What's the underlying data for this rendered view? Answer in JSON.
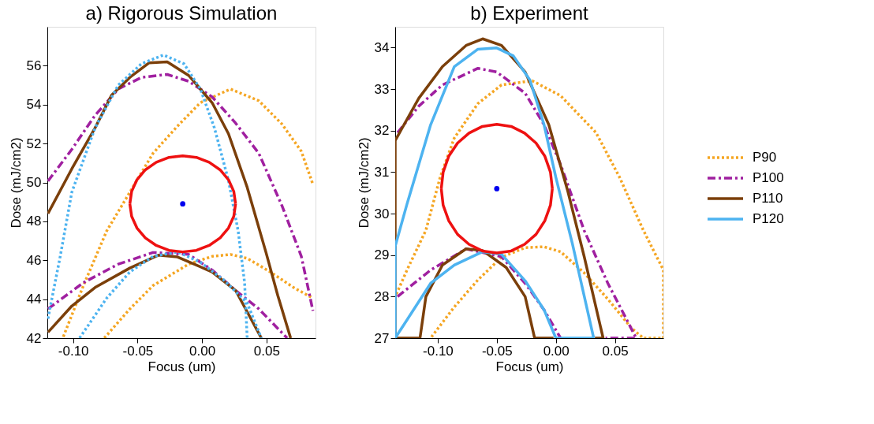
{
  "chart_data": [
    {
      "type": "line",
      "title": "a) Rigorous Simulation",
      "xlabel": "Focus (um)",
      "ylabel": "Dose (mJ/cm2)",
      "xlim": [
        -0.12,
        0.088
      ],
      "ylim": [
        42,
        58
      ],
      "xticks": [
        {
          "value": -0.1,
          "label": "-0.10"
        },
        {
          "value": -0.05,
          "label": "-0.05"
        },
        {
          "value": 0,
          "label": "0.00"
        },
        {
          "value": 0.05,
          "label": "0.05"
        }
      ],
      "yticks": [
        42,
        44,
        46,
        48,
        50,
        52,
        54,
        56
      ],
      "series": [
        {
          "color": "#f5a623",
          "line_style": "dotted",
          "x": [
            -0.1076,
            -0.092,
            -0.074,
            -0.056,
            -0.038,
            -0.019,
            -0.0013,
            0.022,
            0.044,
            0.062,
            0.077,
            0.086,
            null,
            -0.0758,
            -0.056,
            -0.038,
            -0.0104,
            0.0078,
            0.022,
            0.035,
            0.053,
            0.071,
            0.086
          ],
          "values": [
            42.07,
            44.7,
            47.5,
            49.5,
            51.5,
            52.9,
            54.1,
            54.8,
            54.2,
            53.0,
            51.6,
            49.9,
            null,
            42,
            43.5,
            44.7,
            45.8,
            46.2,
            46.3,
            46.1,
            45.4,
            44.6,
            44.05
          ]
        },
        {
          "color": "#a020a0",
          "line_style": "dashed",
          "x": [
            -0.1195,
            -0.101,
            -0.083,
            -0.065,
            -0.047,
            -0.027,
            -0.0104,
            0.0078,
            0.026,
            0.044,
            0.062,
            0.077,
            0.086,
            null,
            -0.1195,
            -0.092,
            -0.065,
            -0.038,
            -0.0104,
            0.0078,
            0.026,
            0.044,
            0.066
          ],
          "values": [
            50.07,
            51.7,
            53.45,
            54.8,
            55.4,
            55.55,
            55.2,
            54.4,
            53.05,
            51.5,
            48.8,
            46.2,
            43.4,
            null,
            43.5,
            44.85,
            45.8,
            46.4,
            46.3,
            45.5,
            44.45,
            43.5,
            42
          ]
        },
        {
          "color": "#7b3f0a",
          "line_style": "solid",
          "x": [
            -0.1195,
            -0.101,
            -0.083,
            -0.07,
            -0.056,
            -0.041,
            -0.027,
            -0.0104,
            0.0078,
            0.0205,
            0.035,
            0.0496,
            0.0587,
            0.0687,
            null,
            -0.1195,
            -0.101,
            -0.083,
            -0.056,
            -0.034,
            -0.019,
            0.0078,
            0.026,
            0.046
          ],
          "values": [
            48.4,
            50.7,
            52.8,
            54.5,
            55.4,
            56.15,
            56.2,
            55.5,
            54.1,
            52.5,
            49.75,
            46.4,
            44.2,
            42,
            null,
            42.3,
            43.65,
            44.6,
            45.6,
            46.26,
            46.17,
            45.4,
            44.45,
            42
          ]
        },
        {
          "color": "#4db3f0",
          "line_style": "dotted",
          "x": [
            -0.1195,
            -0.11,
            -0.101,
            -0.083,
            -0.065,
            -0.047,
            -0.03,
            -0.014,
            -0.0013,
            0.0096,
            0.0205,
            0.028,
            0.033,
            0.035,
            null,
            -0.095,
            -0.074,
            -0.056,
            -0.038,
            -0.019,
            -0.0013,
            0.017,
            0.035,
            0.046
          ],
          "values": [
            43.0,
            46.2,
            49.5,
            52.8,
            55.0,
            56.1,
            56.55,
            56.1,
            54.8,
            52.8,
            50.1,
            47.5,
            44.85,
            42,
            null,
            42,
            44.05,
            45.4,
            46.2,
            46.43,
            45.9,
            44.98,
            43.8,
            42
          ]
        },
        {
          "type": "line",
          "color": "#ee1111",
          "line_style": "solid",
          "x": [
            -0.056,
            -0.0546,
            -0.0505,
            -0.044,
            -0.0355,
            -0.0256,
            -0.015,
            -0.0044,
            0.0055,
            0.014,
            0.0205,
            0.0246,
            0.026,
            null,
            -0.056,
            -0.0546,
            -0.0505,
            -0.044,
            -0.0355,
            -0.0256,
            -0.015,
            -0.0044,
            0.0055,
            0.014,
            0.0205,
            0.0246,
            0.026
          ],
          "values": [
            48.9,
            49.54,
            50.14,
            50.65,
            51.04,
            51.29,
            51.37,
            51.29,
            51.04,
            50.65,
            50.14,
            49.54,
            48.9,
            null,
            48.9,
            48.26,
            47.66,
            47.15,
            46.76,
            46.51,
            46.43,
            46.51,
            46.76,
            47.15,
            47.66,
            48.26,
            48.9
          ]
        },
        {
          "type": "scatter",
          "color": "#0000ee",
          "marker": "circle",
          "x": [
            -0.015
          ],
          "values": [
            48.9
          ]
        }
      ]
    },
    {
      "type": "line",
      "title": "b) Experiment",
      "xlabel": "Focus (um)",
      "ylabel": "Dose (mJ/cm2)",
      "xlim": [
        -0.136,
        0.091
      ],
      "ylim": [
        27,
        34.5
      ],
      "xticks": [
        {
          "value": -0.1,
          "label": "-0.10"
        },
        {
          "value": -0.05,
          "label": "-0.05"
        },
        {
          "value": 0,
          "label": "0.00"
        },
        {
          "value": 0.05,
          "label": "0.05"
        }
      ],
      "yticks": [
        27,
        28,
        29,
        30,
        31,
        32,
        33,
        34
      ],
      "legend": "right",
      "series": [
        {
          "name": "P90",
          "color": "#f5a623",
          "line_style": "dotted",
          "x": [
            -0.135,
            -0.126,
            -0.11,
            -0.098,
            -0.086,
            -0.066,
            -0.046,
            -0.02,
            0.004,
            0.034,
            0.054,
            0.074,
            0.091,
            0.091,
            0.074,
            0.064,
            0.044,
            0.024,
            0.004,
            -0.01,
            -0.026,
            -0.046,
            -0.066,
            -0.086,
            -0.106
          ],
          "values": [
            28.06,
            28.64,
            29.6,
            30.87,
            31.82,
            32.65,
            33.1,
            33.2,
            32.84,
            31.95,
            30.87,
            29.6,
            28.64,
            27,
            27,
            27.24,
            27.94,
            28.57,
            29.08,
            29.2,
            29.18,
            28.95,
            28.4,
            27.75,
            27
          ]
        },
        {
          "name": "P100",
          "color": "#a020a0",
          "line_style": "dashed",
          "x": [
            -0.134,
            -0.116,
            -0.096,
            -0.066,
            -0.05,
            -0.026,
            -0.01,
            0.004,
            0.024,
            0.044,
            0.068,
            0.042,
            null,
            -0.134,
            -0.106,
            -0.076,
            -0.046,
            -0.026,
            -0.01,
            0.004
          ],
          "values": [
            31.95,
            32.59,
            33.1,
            33.5,
            33.41,
            32.9,
            32.14,
            31.18,
            29.59,
            28.32,
            27,
            27,
            null,
            28.0,
            28.64,
            29.15,
            28.96,
            28.32,
            27.68,
            27
          ]
        },
        {
          "name": "P110",
          "color": "#7b3f0a",
          "line_style": "solid",
          "x": [
            -0.002,
            -0.018,
            -0.026,
            -0.042,
            -0.062,
            -0.076,
            -0.096,
            -0.11,
            -0.115,
            -0.136,
            -0.136,
            -0.116,
            -0.096,
            -0.076,
            -0.062,
            -0.046,
            -0.026,
            -0.006,
            0.01,
            0.024,
            0.04,
            0.033
          ],
          "values": [
            27,
            27,
            28.0,
            28.7,
            29.11,
            29.15,
            28.76,
            28.0,
            27,
            27,
            31.76,
            32.78,
            33.54,
            34.05,
            34.21,
            34.05,
            33.41,
            32.14,
            30.55,
            28.96,
            27,
            27
          ]
        },
        {
          "name": "P120",
          "color": "#4db3f0",
          "line_style": "solid",
          "x": [
            -0.136,
            -0.136,
            -0.126,
            -0.106,
            -0.086,
            -0.066,
            -0.05,
            -0.036,
            -0.022,
            -0.01,
            0.0,
            0.014,
            0.032,
            null,
            -0.136,
            -0.106,
            -0.086,
            -0.062,
            -0.046,
            -0.026,
            -0.01,
            0.0,
            0.032
          ],
          "values": [
            27,
            29.21,
            30.23,
            32.14,
            33.54,
            33.96,
            33.99,
            33.8,
            33.22,
            32.14,
            30.87,
            29.27,
            27,
            null,
            27,
            28.32,
            28.76,
            29.08,
            29.02,
            28.38,
            27.68,
            27,
            27
          ]
        },
        {
          "type": "line",
          "color": "#ee1111",
          "line_style": "solid",
          "x": [
            -0.097,
            -0.0954,
            -0.0907,
            -0.0832,
            -0.0735,
            -0.0622,
            -0.05,
            -0.0378,
            -0.0265,
            -0.0168,
            -0.0093,
            -0.0046,
            -0.003,
            null,
            -0.097,
            -0.0954,
            -0.0907,
            -0.0832,
            -0.0735,
            -0.0622,
            -0.05,
            -0.0378,
            -0.0265,
            -0.0168,
            -0.0093,
            -0.0046,
            -0.003
          ],
          "values": [
            30.6,
            31.0,
            31.38,
            31.7,
            31.94,
            32.1,
            32.15,
            32.1,
            31.94,
            31.7,
            31.38,
            31.0,
            30.6,
            null,
            30.6,
            30.2,
            29.83,
            29.5,
            29.26,
            29.1,
            29.05,
            29.1,
            29.26,
            29.5,
            29.83,
            30.2,
            30.6
          ]
        },
        {
          "type": "scatter",
          "color": "#0000ee",
          "marker": "circle",
          "x": [
            -0.05
          ],
          "values": [
            30.6
          ]
        }
      ]
    }
  ]
}
